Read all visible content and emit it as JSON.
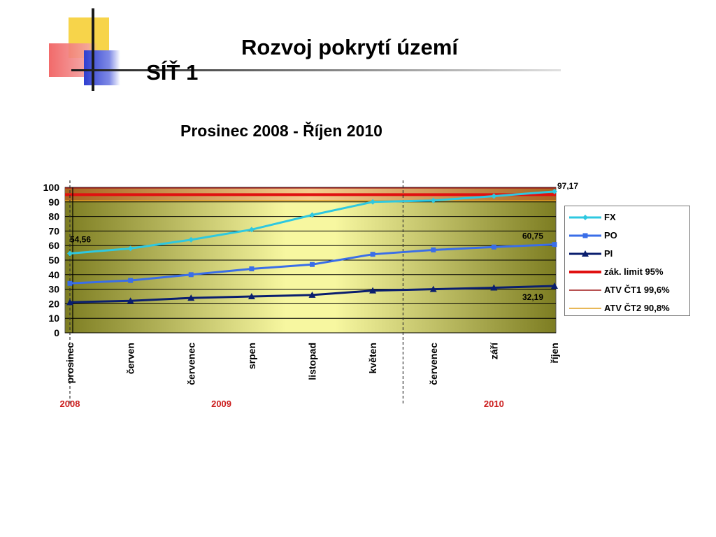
{
  "header": {
    "title_part1": "SÍŤ 1",
    "title_part2": "Rozvoj pokrytí území"
  },
  "chart_data": {
    "type": "line",
    "title": "Prosinec 2008 - Říjen 2010",
    "categories": [
      "prosinec",
      "červen",
      "červenec",
      "srpen",
      "listopad",
      "květen",
      "červenec",
      "září",
      "říjen"
    ],
    "year_labels": [
      {
        "label": "2008",
        "at_category": 0
      },
      {
        "label": "2009",
        "at_category": 2.5
      },
      {
        "label": "2010",
        "at_category": 7
      }
    ],
    "ylim": [
      0,
      100
    ],
    "yticks": [
      0,
      10,
      20,
      30,
      40,
      50,
      60,
      70,
      80,
      90,
      100
    ],
    "grid": true,
    "legend_position": "right",
    "series": [
      {
        "name": "FX",
        "color": "#2ec8e0",
        "marker": "diamond",
        "values": [
          54.56,
          58,
          64,
          71,
          81,
          90,
          91,
          94,
          97.17
        ]
      },
      {
        "name": "PO",
        "color": "#3a6ee8",
        "marker": "square",
        "values": [
          34,
          36,
          40,
          44,
          47,
          54,
          57,
          59,
          60.75
        ]
      },
      {
        "name": "PI",
        "color": "#0a1e6e",
        "marker": "triangle",
        "values": [
          21,
          22,
          24,
          25,
          26,
          29,
          30,
          31,
          32.19
        ]
      }
    ],
    "reference_lines": [
      {
        "name": "zák. limit 95%",
        "value": 95,
        "color": "#e01010"
      },
      {
        "name": "ATV ČT1 99,6%",
        "value": 99.6,
        "color": "#a01818"
      },
      {
        "name": "ATV ČT2 90,8%",
        "value": 90.8,
        "color": "#e0a020"
      }
    ],
    "annotations": [
      {
        "text": "54,56",
        "series": "FX",
        "category_index": 0
      },
      {
        "text": "97,17",
        "series": "FX",
        "category_index": 8
      },
      {
        "text": "60,75",
        "series": "PO",
        "category_index": 8
      },
      {
        "text": "32,19",
        "series": "PI",
        "category_index": 8
      }
    ],
    "year_dividers": [
      0,
      5.5
    ]
  },
  "colors": {
    "year_label": "#cc1f1f",
    "plot_bg_center": "#f7f7a0",
    "plot_bg_edge": "#7d7d22"
  }
}
